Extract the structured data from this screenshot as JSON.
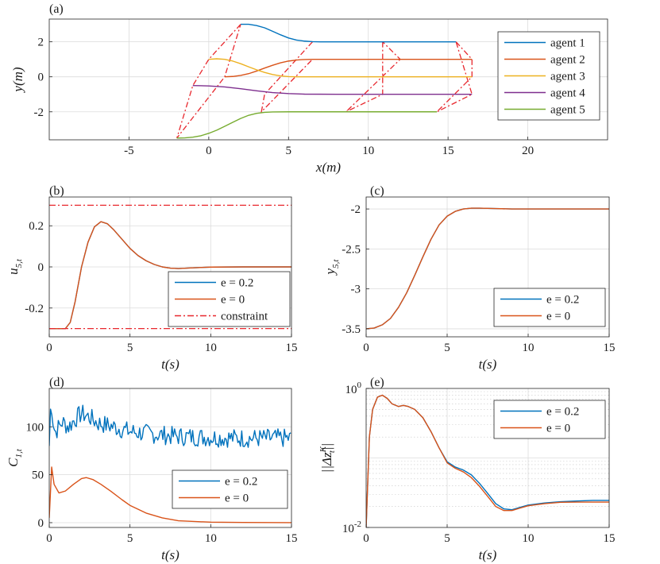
{
  "chart_data": [
    {
      "id": "a",
      "panel_label": "(a)",
      "type": "line",
      "xlabel": "x(m)",
      "ylabel": "y(m)",
      "xlim": [
        -10,
        25
      ],
      "ylim": [
        -3.6,
        3.3
      ],
      "xticks": [
        -5,
        0,
        5,
        10,
        15,
        20
      ],
      "xtick_labels": [
        "-5",
        "0",
        "5",
        "10",
        "15",
        "20"
      ],
      "yticks": [
        -2,
        0,
        2
      ],
      "ytick_labels": [
        "-2",
        "0",
        "2"
      ],
      "legend_position": "right",
      "series": [
        {
          "name": "agent 1",
          "color": "#0072BD",
          "x": [
            2.0,
            2.5,
            3.0,
            3.5,
            4.0,
            4.5,
            5.0,
            5.5,
            6.0,
            6.5,
            7.0,
            8.0,
            10.0,
            12.0,
            15.5
          ],
          "y": [
            3.0,
            3.0,
            2.93,
            2.8,
            2.6,
            2.4,
            2.22,
            2.1,
            2.04,
            2.01,
            2.0,
            2.0,
            2.0,
            2.0,
            2.0
          ]
        },
        {
          "name": "agent 2",
          "color": "#D95319",
          "x": [
            1.0,
            1.5,
            2.0,
            2.5,
            3.0,
            3.5,
            4.0,
            4.5,
            5.0,
            5.5,
            6.0,
            6.5,
            7.0,
            9.0,
            12.0,
            16.5
          ],
          "y": [
            0.0,
            0.02,
            0.08,
            0.18,
            0.33,
            0.5,
            0.66,
            0.8,
            0.9,
            0.96,
            0.99,
            1.0,
            1.0,
            1.0,
            1.0,
            1.0
          ]
        },
        {
          "name": "agent 3",
          "color": "#EDB120",
          "x": [
            0.0,
            0.5,
            1.0,
            1.5,
            2.0,
            2.5,
            3.0,
            3.5,
            4.0,
            4.5,
            5.0,
            5.5,
            6.0,
            7.0,
            10.0,
            16.5
          ],
          "y": [
            1.0,
            1.03,
            1.0,
            0.9,
            0.75,
            0.57,
            0.4,
            0.25,
            0.13,
            0.05,
            0.01,
            0.0,
            0.0,
            0.0,
            0.0,
            0.0
          ]
        },
        {
          "name": "agent 4",
          "color": "#7E2F8E",
          "x": [
            -1.0,
            0.0,
            1.0,
            2.0,
            3.0,
            4.0,
            5.0,
            6.0,
            8.0,
            11.0,
            16.5
          ],
          "y": [
            -0.5,
            -0.52,
            -0.58,
            -0.68,
            -0.8,
            -0.9,
            -0.96,
            -0.99,
            -1.0,
            -1.0,
            -1.0
          ]
        },
        {
          "name": "agent 5",
          "color": "#77AC30",
          "x": [
            -2.0,
            -1.5,
            -1.0,
            -0.5,
            0.0,
            0.5,
            1.0,
            1.5,
            2.0,
            2.5,
            3.0,
            3.5,
            4.0,
            5.0,
            6.0,
            8.0,
            11.0,
            14.3
          ],
          "y": [
            -3.5,
            -3.49,
            -3.45,
            -3.37,
            -3.23,
            -3.05,
            -2.83,
            -2.6,
            -2.38,
            -2.2,
            -2.09,
            -2.03,
            -2.01,
            -2.0,
            -2.0,
            -2.0,
            -2.0,
            -2.0
          ]
        }
      ],
      "formation_links": [
        {
          "color": "#E8282E",
          "x": [
            2.0,
            0.0,
            -1.0,
            -2.0,
            1.0,
            2.0
          ],
          "y": [
            3.0,
            1.0,
            -0.5,
            -3.5,
            0.0,
            3.0
          ]
        },
        {
          "color": "#E8282E",
          "x": [
            6.5,
            4.5,
            3.5,
            3.3,
            6.5
          ],
          "y": [
            2.0,
            0.0,
            -1.0,
            -2.0,
            1.0
          ]
        },
        {
          "color": "#E8282E",
          "x": [
            10.9,
            10.9,
            10.9,
            8.6,
            12.0,
            10.9
          ],
          "y": [
            2.0,
            0.0,
            -1.0,
            -2.0,
            1.0,
            2.0
          ]
        },
        {
          "color": "#E8282E",
          "x": [
            15.5,
            16.5,
            16.5,
            14.3,
            16.5,
            15.5
          ],
          "y": [
            2.0,
            1.0,
            0.0,
            -2.0,
            -1.0,
            2.0
          ]
        }
      ]
    },
    {
      "id": "b",
      "panel_label": "(b)",
      "type": "line",
      "xlabel": "t(s)",
      "ylabel": "u",
      "ylabel_sub": "5,t",
      "xlim": [
        0,
        15
      ],
      "ylim": [
        -0.34,
        0.34
      ],
      "xticks": [
        0,
        5,
        10,
        15
      ],
      "xtick_labels": [
        "0",
        "5",
        "10",
        "15"
      ],
      "yticks": [
        -0.2,
        0,
        0.2
      ],
      "ytick_labels": [
        "-0.2",
        "0",
        "0.2"
      ],
      "legend_position": "bottom-right",
      "series": [
        {
          "name": "e = 0.2",
          "color": "#0072BD",
          "x": [
            0.0,
            1.0,
            1.3,
            1.6,
            2.0,
            2.4,
            2.8,
            3.2,
            3.6,
            4.0,
            4.5,
            5.0,
            5.5,
            6.0,
            6.5,
            7.0,
            7.5,
            8.0,
            9.0,
            10.0,
            12.0,
            15.0
          ],
          "y": [
            -0.3,
            -0.3,
            -0.27,
            -0.17,
            0.0,
            0.12,
            0.195,
            0.22,
            0.21,
            0.18,
            0.135,
            0.09,
            0.055,
            0.03,
            0.012,
            0.0,
            -0.006,
            -0.008,
            -0.004,
            -0.001,
            0.0,
            0.0
          ]
        },
        {
          "name": "e = 0",
          "color": "#D95319",
          "x": [
            0.0,
            1.0,
            1.3,
            1.6,
            2.0,
            2.4,
            2.8,
            3.2,
            3.6,
            4.0,
            4.5,
            5.0,
            5.5,
            6.0,
            6.5,
            7.0,
            7.5,
            8.0,
            9.0,
            10.0,
            12.0,
            15.0
          ],
          "y": [
            -0.3,
            -0.3,
            -0.27,
            -0.17,
            0.0,
            0.12,
            0.195,
            0.22,
            0.21,
            0.18,
            0.135,
            0.09,
            0.055,
            0.03,
            0.012,
            0.0,
            -0.006,
            -0.008,
            -0.004,
            -0.001,
            0.0,
            0.0
          ]
        },
        {
          "name": "constraint",
          "color": "#E8282E",
          "dashed": true,
          "x": [
            0,
            15
          ],
          "y": [
            0.3,
            0.3
          ]
        },
        {
          "name": "constraint-lower",
          "color": "#E8282E",
          "dashed": true,
          "legend": false,
          "x": [
            0,
            15
          ],
          "y": [
            -0.3,
            -0.3
          ]
        }
      ]
    },
    {
      "id": "c",
      "panel_label": "(c)",
      "type": "line",
      "xlabel": "t(s)",
      "ylabel": "y",
      "ylabel_sub": "5,t",
      "xlim": [
        0,
        15
      ],
      "ylim": [
        -3.6,
        -1.85
      ],
      "xticks": [
        0,
        5,
        10,
        15
      ],
      "xtick_labels": [
        "0",
        "5",
        "10",
        "15"
      ],
      "yticks": [
        -3.5,
        -3,
        -2.5,
        -2
      ],
      "ytick_labels": [
        "-3.5",
        "-3",
        "-2.5",
        "-2"
      ],
      "legend_position": "bottom-right",
      "series": [
        {
          "name": "e = 0.2",
          "color": "#0072BD",
          "x": [
            0.0,
            0.5,
            1.0,
            1.5,
            2.0,
            2.5,
            3.0,
            3.5,
            4.0,
            4.5,
            5.0,
            5.5,
            6.0,
            6.5,
            7.0,
            8.0,
            9.0,
            10.0,
            12.0,
            15.0
          ],
          "y": [
            -3.5,
            -3.49,
            -3.45,
            -3.37,
            -3.23,
            -3.05,
            -2.83,
            -2.6,
            -2.38,
            -2.2,
            -2.09,
            -2.03,
            -2.0,
            -1.99,
            -1.99,
            -1.995,
            -2.0,
            -2.0,
            -2.0,
            -2.0
          ]
        },
        {
          "name": "e = 0",
          "color": "#D95319",
          "x": [
            0.0,
            0.5,
            1.0,
            1.5,
            2.0,
            2.5,
            3.0,
            3.5,
            4.0,
            4.5,
            5.0,
            5.5,
            6.0,
            6.5,
            7.0,
            8.0,
            9.0,
            10.0,
            12.0,
            15.0
          ],
          "y": [
            -3.5,
            -3.49,
            -3.45,
            -3.37,
            -3.23,
            -3.05,
            -2.83,
            -2.6,
            -2.38,
            -2.2,
            -2.09,
            -2.03,
            -2.0,
            -1.99,
            -1.99,
            -1.995,
            -2.0,
            -2.0,
            -2.0,
            -2.0
          ]
        }
      ]
    },
    {
      "id": "d",
      "panel_label": "(d)",
      "type": "line",
      "xlabel": "t(s)",
      "ylabel": "C",
      "ylabel_sub": "1,t",
      "xlim": [
        0,
        15
      ],
      "ylim": [
        -5,
        140
      ],
      "xticks": [
        0,
        5,
        10,
        15
      ],
      "xtick_labels": [
        "0",
        "5",
        "10",
        "15"
      ],
      "yticks": [
        0,
        50,
        100
      ],
      "ytick_labels": [
        "0",
        "50",
        "100"
      ],
      "legend_position": "bottom-right",
      "series": [
        {
          "name": "e = 0.2",
          "color": "#0072BD",
          "noisy": true,
          "x": [
            0.0,
            0.1,
            0.2,
            0.4,
            0.8,
            1.2,
            1.6,
            2.0,
            2.5,
            3.0,
            4.0,
            5.0,
            6.0,
            8.0,
            10.0,
            12.0,
            15.0
          ],
          "y": [
            80,
            128,
            102,
            95,
            105,
            100,
            108,
            114,
            110,
            104,
            100,
            95,
            93,
            90,
            89,
            88,
            88
          ]
        },
        {
          "name": "e = 0",
          "color": "#D95319",
          "x": [
            0.0,
            0.15,
            0.3,
            0.6,
            1.0,
            1.5,
            2.0,
            2.3,
            2.7,
            3.2,
            3.8,
            4.5,
            5.0,
            6.0,
            7.0,
            8.0,
            10.0,
            12.0,
            15.0
          ],
          "y": [
            5,
            58,
            40,
            31,
            33,
            40,
            46,
            47,
            45,
            40,
            33,
            24,
            18,
            10,
            5,
            2,
            0.5,
            0.2,
            0.0
          ]
        }
      ]
    },
    {
      "id": "e",
      "panel_label": "(e)",
      "type": "line",
      "yscale": "log",
      "xlabel": "t(s)",
      "ylabel": "||Δz",
      "ylabel_sup": "K",
      "ylabel_sub": "t",
      "ylabel_end": "||",
      "xlim": [
        0,
        15
      ],
      "ylim": [
        0.01,
        1.0
      ],
      "xticks": [
        0,
        5,
        10,
        15
      ],
      "xtick_labels": [
        "0",
        "5",
        "10",
        "15"
      ],
      "ytick_base": "10",
      "ytick_exponents": [
        "-2",
        "0"
      ],
      "legend_position": "top-right",
      "series": [
        {
          "name": "e = 0.2",
          "color": "#0072BD",
          "x": [
            0.0,
            0.2,
            0.4,
            0.7,
            1.0,
            1.3,
            1.6,
            2.0,
            2.3,
            2.6,
            3.0,
            3.5,
            4.0,
            4.5,
            5.0,
            5.5,
            6.0,
            6.5,
            7.0,
            7.5,
            8.0,
            8.5,
            9.0,
            9.5,
            10.0,
            11.0,
            12.0,
            13.0,
            14.0,
            15.0
          ],
          "y": [
            0.01,
            0.2,
            0.5,
            0.75,
            0.8,
            0.72,
            0.6,
            0.55,
            0.57,
            0.55,
            0.5,
            0.38,
            0.24,
            0.14,
            0.088,
            0.074,
            0.067,
            0.057,
            0.043,
            0.031,
            0.022,
            0.0185,
            0.018,
            0.0195,
            0.021,
            0.0225,
            0.0235,
            0.024,
            0.0245,
            0.0245
          ]
        },
        {
          "name": "e = 0",
          "color": "#D95319",
          "x": [
            0.0,
            0.2,
            0.4,
            0.7,
            1.0,
            1.3,
            1.6,
            2.0,
            2.3,
            2.6,
            3.0,
            3.5,
            4.0,
            4.5,
            5.0,
            5.5,
            6.0,
            6.5,
            7.0,
            7.5,
            8.0,
            8.5,
            9.0,
            9.5,
            10.0,
            11.0,
            12.0,
            13.0,
            14.0,
            15.0
          ],
          "y": [
            0.01,
            0.2,
            0.5,
            0.75,
            0.8,
            0.72,
            0.6,
            0.55,
            0.57,
            0.55,
            0.5,
            0.38,
            0.24,
            0.14,
            0.085,
            0.071,
            0.063,
            0.052,
            0.039,
            0.028,
            0.02,
            0.0175,
            0.0175,
            0.019,
            0.0205,
            0.022,
            0.023,
            0.0232,
            0.0232,
            0.0232
          ]
        }
      ]
    }
  ]
}
